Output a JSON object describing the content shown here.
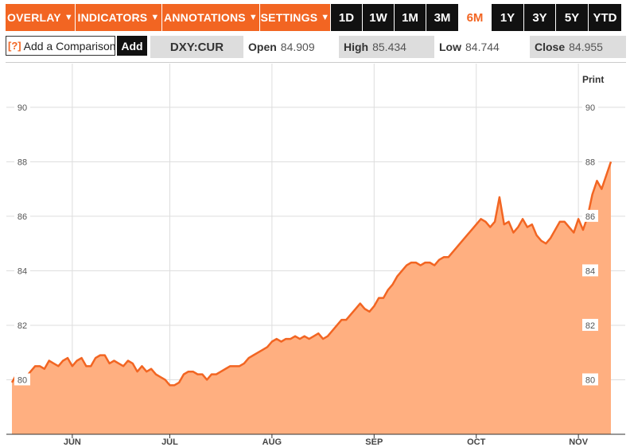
{
  "toolbar": {
    "menus": [
      {
        "label": "OVERLAY",
        "caret": "▼"
      },
      {
        "label": "INDICATORS",
        "caret": "▼"
      },
      {
        "label": "ANNOTATIONS",
        "caret": "▼"
      },
      {
        "label": "SETTINGS",
        "caret": "▼"
      }
    ],
    "ranges": [
      "1D",
      "1W",
      "1M",
      "3M",
      "6M",
      "1Y",
      "3Y",
      "5Y",
      "YTD"
    ],
    "active_range": "6M"
  },
  "compare": {
    "help": "[?]",
    "placeholder": "Add a Comparison",
    "add_label": "Add"
  },
  "quote": {
    "symbol": "DXY:CUR",
    "open_label": "Open",
    "open": "84.909",
    "high_label": "High",
    "high": "85.434",
    "low_label": "Low",
    "low": "84.744",
    "close_label": "Close",
    "close": "84.955"
  },
  "print_label": "Print",
  "colors": {
    "accent": "#f26522",
    "fill": "#ffaf80",
    "line": "#f26522"
  },
  "chart_data": {
    "type": "area",
    "title": "",
    "xlabel": "",
    "ylabel": "",
    "ylim": [
      78,
      91.6
    ],
    "yticks": [
      80,
      82,
      84,
      86,
      88,
      90
    ],
    "xticks": [
      {
        "label": "JUN",
        "index": 13
      },
      {
        "label": "JUL",
        "index": 34
      },
      {
        "label": "AUG",
        "index": 56
      },
      {
        "label": "SEP",
        "index": 78
      },
      {
        "label": "OCT",
        "index": 100
      },
      {
        "label": "NOV",
        "index": 122
      }
    ],
    "grid": true,
    "values": [
      79.9,
      80.2,
      80.1,
      80.1,
      80.3,
      80.5,
      80.5,
      80.4,
      80.7,
      80.6,
      80.5,
      80.7,
      80.8,
      80.5,
      80.7,
      80.8,
      80.5,
      80.5,
      80.8,
      80.9,
      80.9,
      80.6,
      80.7,
      80.6,
      80.5,
      80.7,
      80.6,
      80.3,
      80.5,
      80.3,
      80.4,
      80.2,
      80.1,
      80.0,
      79.8,
      79.8,
      79.9,
      80.2,
      80.3,
      80.3,
      80.2,
      80.2,
      80.0,
      80.2,
      80.2,
      80.3,
      80.4,
      80.5,
      80.5,
      80.5,
      80.6,
      80.8,
      80.9,
      81.0,
      81.1,
      81.2,
      81.4,
      81.5,
      81.4,
      81.5,
      81.5,
      81.6,
      81.5,
      81.6,
      81.5,
      81.6,
      81.7,
      81.5,
      81.6,
      81.8,
      82.0,
      82.2,
      82.2,
      82.4,
      82.6,
      82.8,
      82.6,
      82.5,
      82.7,
      83.0,
      83.0,
      83.3,
      83.5,
      83.8,
      84.0,
      84.2,
      84.3,
      84.3,
      84.2,
      84.3,
      84.3,
      84.2,
      84.4,
      84.5,
      84.5,
      84.7,
      84.9,
      85.1,
      85.3,
      85.5,
      85.7,
      85.9,
      85.8,
      85.6,
      85.8,
      86.7,
      85.7,
      85.8,
      85.4,
      85.6,
      85.9,
      85.6,
      85.7,
      85.3,
      85.1,
      85.0,
      85.2,
      85.5,
      85.8,
      85.8,
      85.6,
      85.4,
      85.9,
      85.5,
      86.0,
      86.8,
      87.3,
      87.0,
      87.5,
      88.0
    ]
  }
}
